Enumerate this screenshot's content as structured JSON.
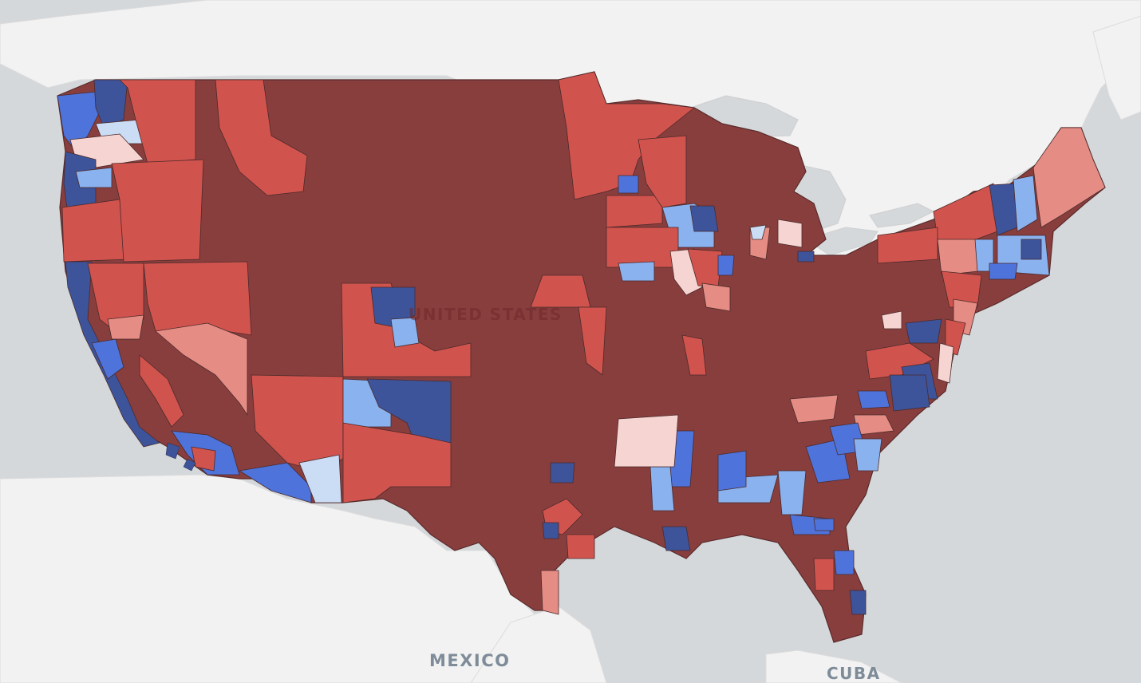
{
  "map": {
    "labels": {
      "country_main": "UNITED STATES",
      "country_south": "MEXICO",
      "island_country": "CUBA"
    },
    "basemap_colors": {
      "water": "#d4d8db",
      "land": "#f2f2f2",
      "border": "#dadada"
    },
    "district_colors": {
      "safe_republican": "#893e3e",
      "likely_republican": "#d1534d",
      "lean_republican": "#e58c84",
      "tilt_republican": "#f6d4d2",
      "tilt_democratic": "#cbdcf5",
      "lean_democratic": "#8ab2ef",
      "likely_democratic": "#4e73da",
      "safe_democratic": "#3d539a"
    }
  }
}
